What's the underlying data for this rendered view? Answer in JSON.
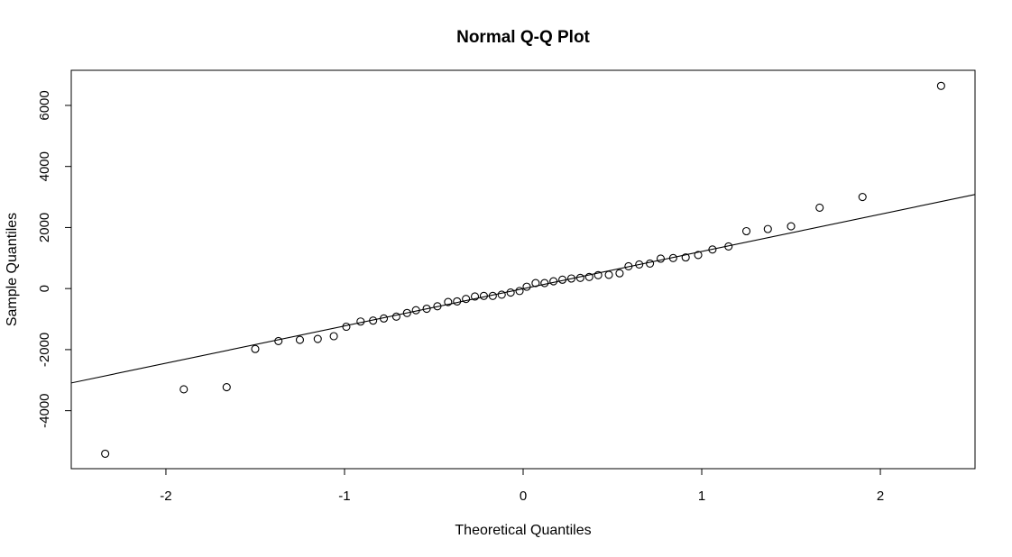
{
  "chart_data": {
    "type": "scatter",
    "title": "Normal Q-Q Plot",
    "xlabel": "Theoretical Quantiles",
    "ylabel": "Sample Quantiles",
    "xlim": [
      -2.53,
      2.53
    ],
    "ylim": [
      -5900,
      7150
    ],
    "xticks": [
      -2,
      -1,
      0,
      1,
      2
    ],
    "xtick_labels": [
      "-2",
      "-1",
      "0",
      "1",
      "2"
    ],
    "yticks": [
      -4000,
      -2000,
      0,
      2000,
      4000,
      6000
    ],
    "ytick_labels": [
      "-4000",
      "-2000",
      "0",
      "2000",
      "4000",
      "6000"
    ],
    "grid": false,
    "reference_line": {
      "slope": 1220,
      "intercept": -5
    },
    "points": {
      "x": [
        -2.34,
        -1.9,
        -1.66,
        -1.5,
        -1.37,
        -1.25,
        -1.15,
        -1.06,
        -0.99,
        -0.91,
        -0.84,
        -0.78,
        -0.71,
        -0.65,
        -0.6,
        -0.54,
        -0.48,
        -0.42,
        -0.37,
        -0.32,
        -0.27,
        -0.22,
        -0.17,
        -0.12,
        -0.07,
        -0.02,
        0.02,
        0.07,
        0.12,
        0.17,
        0.22,
        0.27,
        0.32,
        0.37,
        0.42,
        0.48,
        0.54,
        0.59,
        0.65,
        0.71,
        0.77,
        0.84,
        0.91,
        0.98,
        1.06,
        1.15,
        1.25,
        1.37,
        1.5,
        1.66,
        1.9,
        2.34
      ],
      "y": [
        -5410,
        -3300,
        -3230,
        -1980,
        -1720,
        -1680,
        -1650,
        -1560,
        -1250,
        -1080,
        -1050,
        -980,
        -920,
        -800,
        -710,
        -660,
        -580,
        -440,
        -420,
        -340,
        -260,
        -240,
        -240,
        -200,
        -130,
        -80,
        60,
        180,
        180,
        240,
        290,
        330,
        350,
        380,
        440,
        450,
        500,
        730,
        790,
        820,
        980,
        1000,
        1020,
        1100,
        1280,
        1380,
        1880,
        1950,
        2040,
        2650,
        3000,
        6640
      ]
    }
  }
}
